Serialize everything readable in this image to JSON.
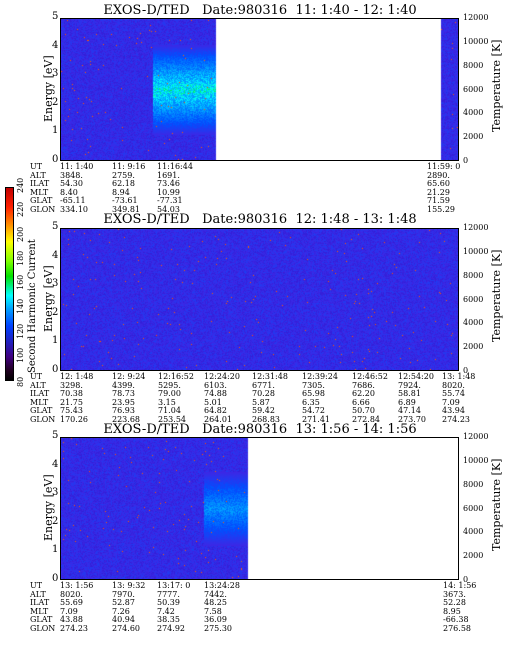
{
  "colorbar": {
    "label": "Second Harmonic Current",
    "ticks": [
      "240",
      "220",
      "200",
      "180",
      "160",
      "140",
      "120",
      "100",
      "80"
    ]
  },
  "chart_data": [
    {
      "type": "heatmap",
      "title": "EXOS-D/TED   Date:980316  11: 1:40 - 12: 1:40",
      "ylabel": "Energy [eV]",
      "ylabel_right": "Temperature [K]",
      "ylim": [
        0,
        5
      ],
      "ylim_right": [
        0,
        12000
      ],
      "yticks": [
        "5",
        "4",
        "3",
        "2",
        "1",
        "0"
      ],
      "yticks_right": [
        "12000",
        "10000",
        "8000",
        "6000",
        "4000",
        "2000",
        "0"
      ],
      "data_coverage": [
        [
          0.0,
          0.39
        ],
        [
          0.955,
          1.0
        ]
      ],
      "background_level": 120,
      "peak_level": 165,
      "peak_region": {
        "x": [
          0.23,
          0.39
        ],
        "energy": [
          1.5,
          3.5
        ]
      },
      "row_labels": [
        "UT",
        "ALT",
        "ILAT",
        "MLT",
        "GLAT",
        "GLON"
      ],
      "columns": [
        {
          "values": [
            "11: 1:40",
            "3848.",
            "54.30",
            "8.40",
            "-65.11",
            "334.10"
          ]
        },
        {
          "values": [
            "11: 9:16",
            "2759.",
            "62.18",
            "8.94",
            "-73.61",
            "349.81"
          ]
        },
        {
          "values": [
            "11:16:44",
            "1691.",
            "73.46",
            "10.99",
            "-77.31",
            "54.03"
          ]
        },
        {
          "values": [
            "11:59: 0",
            "2890.",
            "65.60",
            "21.29",
            "71.59",
            "155.29"
          ]
        }
      ]
    },
    {
      "type": "heatmap",
      "title": "EXOS-D/TED   Date:980316  12: 1:48 - 13: 1:48",
      "ylabel": "Energy [eV]",
      "ylabel_right": "Temperature [K]",
      "ylim": [
        0,
        5
      ],
      "ylim_right": [
        0,
        12000
      ],
      "yticks": [
        "5",
        "4",
        "3",
        "2",
        "1",
        "0"
      ],
      "yticks_right": [
        "12000",
        "10000",
        "8000",
        "6000",
        "4000",
        "2000",
        "0"
      ],
      "data_coverage": [
        [
          0.0,
          1.0
        ]
      ],
      "background_level": 120,
      "row_labels": [
        "UT",
        "ALT",
        "ILAT",
        "MLT",
        "GLAT",
        "GLON"
      ],
      "columns": [
        {
          "values": [
            "12: 1:48",
            "3298.",
            "70.38",
            "21.75",
            "75.43",
            "170.26"
          ]
        },
        {
          "values": [
            "12: 9:24",
            "4399.",
            "78.73",
            "23.95",
            "76.93",
            "223.68"
          ]
        },
        {
          "values": [
            "12:16:52",
            "5295.",
            "79.00",
            "3.15",
            "71.04",
            "253.54"
          ]
        },
        {
          "values": [
            "12:24:20",
            "6103.",
            "74.88",
            "5.01",
            "64.82",
            "264.01"
          ]
        },
        {
          "values": [
            "12:31:48",
            "6771.",
            "70.28",
            "5.87",
            "59.42",
            "268.83"
          ]
        },
        {
          "values": [
            "12:39:24",
            "7305.",
            "65.98",
            "6.35",
            "54.72",
            "271.41"
          ]
        },
        {
          "values": [
            "12:46:52",
            "7686.",
            "62.20",
            "6.66",
            "50.70",
            "272.84"
          ]
        },
        {
          "values": [
            "12:54:20",
            "7924.",
            "58.81",
            "6.89",
            "47.14",
            "273.70"
          ]
        },
        {
          "values": [
            "13: 1:48",
            "8020.",
            "55.74",
            "7.09",
            "43.94",
            "274.23"
          ]
        }
      ]
    },
    {
      "type": "heatmap",
      "title": "EXOS-D/TED   Date:980316  13: 1:56 - 14: 1:56",
      "ylabel": "Energy [eV]",
      "ylabel_right": "Temperature [K]",
      "ylim": [
        0,
        5
      ],
      "ylim_right": [
        0,
        12000
      ],
      "yticks": [
        "5",
        "4",
        "3",
        "2",
        "1",
        "0"
      ],
      "yticks_right": [
        "12000",
        "10000",
        "8000",
        "6000",
        "4000",
        "2000",
        "0"
      ],
      "data_coverage": [
        [
          0.0,
          0.47
        ]
      ],
      "background_level": 120,
      "peak_level": 145,
      "peak_region": {
        "x": [
          0.36,
          0.47
        ],
        "energy": [
          1.8,
          3.2
        ]
      },
      "row_labels": [
        "UT",
        "ALT",
        "ILAT",
        "MLT",
        "GLAT",
        "GLON"
      ],
      "columns": [
        {
          "values": [
            "13: 1:56",
            "8020.",
            "55.69",
            "7.09",
            "43.88",
            "274.23"
          ]
        },
        {
          "values": [
            "13: 9:32",
            "7970.",
            "52.87",
            "7.26",
            "40.94",
            "274.60"
          ]
        },
        {
          "values": [
            "13:17: 0",
            "7777.",
            "50.39",
            "7.42",
            "38.35",
            "274.92"
          ]
        },
        {
          "values": [
            "13:24:28",
            "7442.",
            "48.25",
            "7.58",
            "36.09",
            "275.30"
          ]
        },
        {
          "values": [
            "14: 1:56",
            "3673.",
            "52.28",
            "8.95",
            "-66.38",
            "276.58"
          ]
        }
      ]
    }
  ]
}
